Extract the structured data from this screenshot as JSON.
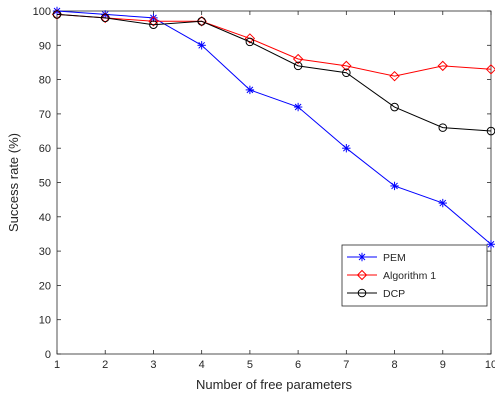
{
  "chart_data": {
    "type": "line",
    "xlabel": "Number of free parameters",
    "ylabel": "Success rate (%)",
    "xlim": [
      1,
      10
    ],
    "ylim": [
      0,
      100
    ],
    "x": [
      1,
      2,
      3,
      4,
      5,
      6,
      7,
      8,
      9,
      10
    ],
    "xticks": [
      1,
      2,
      3,
      4,
      5,
      6,
      7,
      8,
      9,
      10
    ],
    "yticks": [
      0,
      10,
      20,
      30,
      40,
      50,
      60,
      70,
      80,
      90,
      100
    ],
    "grid": false,
    "legend_position": "lower-right",
    "series": [
      {
        "name": "PEM",
        "values": [
          100,
          99,
          98,
          90,
          77,
          72,
          60,
          49,
          44,
          32
        ],
        "color": "#0000ff",
        "marker": "asterisk"
      },
      {
        "name": "Algorithm 1",
        "values": [
          99,
          98,
          97,
          97,
          92,
          86,
          84,
          81,
          84,
          83
        ],
        "color": "#ff0000",
        "marker": "diamond"
      },
      {
        "name": "DCP",
        "values": [
          99,
          98,
          96,
          97,
          91,
          84,
          82,
          72,
          66,
          65
        ],
        "color": "#000000",
        "marker": "circle"
      }
    ]
  }
}
